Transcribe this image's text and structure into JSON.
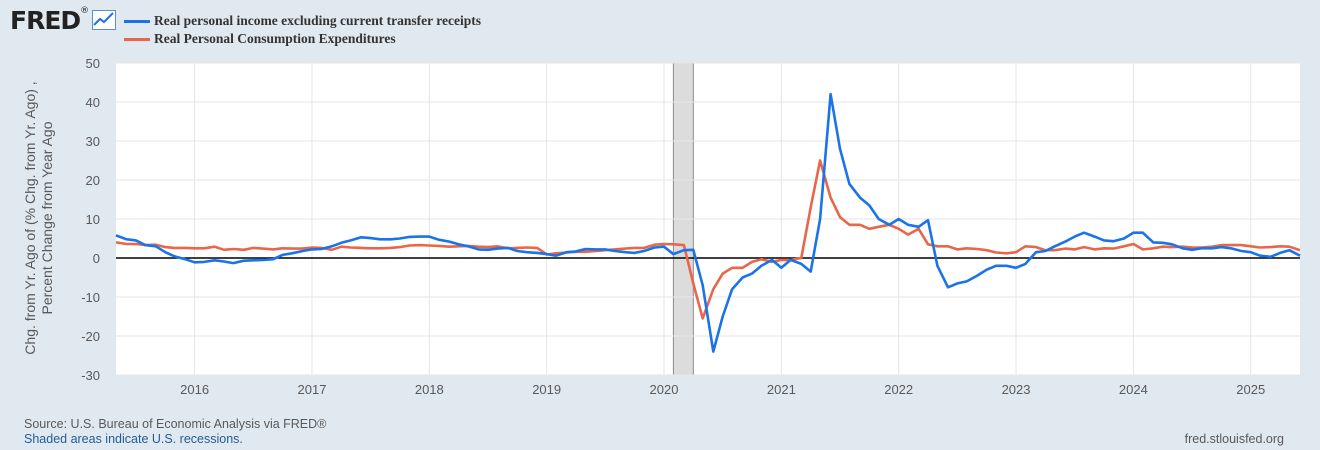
{
  "brand": {
    "logo_text": "FRED",
    "logo_suffix": "®"
  },
  "footer": {
    "source": "Source: U.S. Bureau of Economic Analysis via FRED®",
    "shading_note": "Shaded areas indicate U.S. recessions.",
    "url": "fred.stlouisfed.org"
  },
  "colors": {
    "series_income": "#1a73e8",
    "series_pce": "#e8674a",
    "background": "#e1e9f0",
    "plot_bg": "#ffffff",
    "recession": "#dcdcdc"
  },
  "chart_data": {
    "type": "line",
    "title": "",
    "xlabel": "",
    "ylabel": "Chg. from Yr. Ago of (% Chg. from Yr. Ago) ,\nPercent Change from Year Ago",
    "ylim": [
      -30,
      50
    ],
    "xlim": [
      2015.33,
      2025.42
    ],
    "yticks": [
      -30,
      -20,
      -10,
      0,
      10,
      20,
      30,
      40,
      50
    ],
    "xticks": [
      2016,
      2017,
      2018,
      2019,
      2020,
      2021,
      2022,
      2023,
      2024,
      2025
    ],
    "grid": true,
    "legend_position": "top-left",
    "recessions": [
      [
        2020.08,
        2020.25
      ]
    ],
    "series": [
      {
        "name": "Real personal income excluding current transfer receipts",
        "color": "#1a73e8",
        "x": [
          2015.33,
          2015.42,
          2015.5,
          2015.58,
          2015.67,
          2015.75,
          2015.83,
          2015.92,
          2016.0,
          2016.08,
          2016.17,
          2016.25,
          2016.33,
          2016.42,
          2016.5,
          2016.58,
          2016.67,
          2016.75,
          2016.83,
          2016.92,
          2017.0,
          2017.08,
          2017.17,
          2017.25,
          2017.33,
          2017.42,
          2017.5,
          2017.58,
          2017.67,
          2017.75,
          2017.83,
          2017.92,
          2018.0,
          2018.08,
          2018.17,
          2018.25,
          2018.33,
          2018.42,
          2018.5,
          2018.58,
          2018.67,
          2018.75,
          2018.83,
          2018.92,
          2019.0,
          2019.08,
          2019.17,
          2019.25,
          2019.33,
          2019.42,
          2019.5,
          2019.58,
          2019.67,
          2019.75,
          2019.83,
          2019.92,
          2020.0,
          2020.08,
          2020.17,
          2020.25,
          2020.33,
          2020.42,
          2020.5,
          2020.58,
          2020.67,
          2020.75,
          2020.83,
          2020.92,
          2021.0,
          2021.08,
          2021.17,
          2021.25,
          2021.33,
          2021.42,
          2021.5,
          2021.58,
          2021.67,
          2021.75,
          2021.83,
          2021.92,
          2022.0,
          2022.08,
          2022.17,
          2022.25,
          2022.33,
          2022.42,
          2022.5,
          2022.58,
          2022.67,
          2022.75,
          2022.83,
          2022.92,
          2023.0,
          2023.08,
          2023.17,
          2023.25,
          2023.33,
          2023.42,
          2023.5,
          2023.58,
          2023.67,
          2023.75,
          2023.83,
          2023.92,
          2024.0,
          2024.08,
          2024.17,
          2024.25,
          2024.33,
          2024.42,
          2024.5,
          2024.58,
          2024.67,
          2024.75,
          2024.83,
          2024.92,
          2025.0,
          2025.08,
          2025.17,
          2025.25,
          2025.33,
          2025.42
        ],
        "y": [
          5.8,
          4.8,
          4.5,
          3.3,
          3.0,
          1.5,
          0.4,
          -0.3,
          -1.1,
          -1.0,
          -0.6,
          -0.9,
          -1.3,
          -0.7,
          -0.6,
          -0.5,
          -0.3,
          0.8,
          1.2,
          1.8,
          2.2,
          2.3,
          3.0,
          3.9,
          4.5,
          5.3,
          5.1,
          4.8,
          4.8,
          5.0,
          5.4,
          5.5,
          5.5,
          4.7,
          4.2,
          3.5,
          3.0,
          2.2,
          2.1,
          2.4,
          2.6,
          1.8,
          1.5,
          1.3,
          1.0,
          0.6,
          1.5,
          1.7,
          2.3,
          2.2,
          2.2,
          1.8,
          1.5,
          1.3,
          1.8,
          2.7,
          2.9,
          1.0,
          2.0,
          2.1,
          -7.0,
          -24.0,
          -15.0,
          -8.0,
          -5.0,
          -4.0,
          -2.0,
          -0.5,
          -2.5,
          -0.5,
          -1.5,
          -3.5,
          10.0,
          42.0,
          28.0,
          19.0,
          15.5,
          13.5,
          10.0,
          8.5,
          10.0,
          8.5,
          8.0,
          9.7,
          -2.0,
          -7.5,
          -6.5,
          -6.0,
          -4.5,
          -3.0,
          -2.0,
          -2.0,
          -2.5,
          -1.5,
          1.5,
          1.8,
          3.0,
          4.2,
          5.5,
          6.5,
          5.5,
          4.5,
          4.3,
          5.0,
          6.5,
          6.5,
          4.0,
          3.9,
          3.5,
          2.5,
          2.1,
          2.5,
          2.5,
          2.8,
          2.5,
          1.8,
          1.5,
          0.6,
          0.3,
          1.3,
          2.0,
          0.6
        ]
      },
      {
        "name": "Real Personal Consumption Expenditures",
        "color": "#e8674a",
        "x": [
          2015.33,
          2015.42,
          2015.5,
          2015.58,
          2015.67,
          2015.75,
          2015.83,
          2015.92,
          2016.0,
          2016.08,
          2016.17,
          2016.25,
          2016.33,
          2016.42,
          2016.5,
          2016.58,
          2016.67,
          2016.75,
          2016.83,
          2016.92,
          2017.0,
          2017.08,
          2017.17,
          2017.25,
          2017.33,
          2017.42,
          2017.5,
          2017.58,
          2017.67,
          2017.75,
          2017.83,
          2017.92,
          2018.0,
          2018.08,
          2018.17,
          2018.25,
          2018.33,
          2018.42,
          2018.5,
          2018.58,
          2018.67,
          2018.75,
          2018.83,
          2018.92,
          2019.0,
          2019.08,
          2019.17,
          2019.25,
          2019.33,
          2019.42,
          2019.5,
          2019.58,
          2019.67,
          2019.75,
          2019.83,
          2019.92,
          2020.0,
          2020.08,
          2020.17,
          2020.25,
          2020.33,
          2020.42,
          2020.5,
          2020.58,
          2020.67,
          2020.75,
          2020.83,
          2020.92,
          2021.0,
          2021.08,
          2021.17,
          2021.25,
          2021.33,
          2021.42,
          2021.5,
          2021.58,
          2021.67,
          2021.75,
          2021.83,
          2021.92,
          2022.0,
          2022.08,
          2022.17,
          2022.25,
          2022.33,
          2022.42,
          2022.5,
          2022.58,
          2022.67,
          2022.75,
          2022.83,
          2022.92,
          2023.0,
          2023.08,
          2023.17,
          2023.25,
          2023.33,
          2023.42,
          2023.5,
          2023.58,
          2023.67,
          2023.75,
          2023.83,
          2023.92,
          2024.0,
          2024.08,
          2024.17,
          2024.25,
          2024.33,
          2024.42,
          2024.5,
          2024.58,
          2024.67,
          2024.75,
          2024.83,
          2024.92,
          2025.0,
          2025.08,
          2025.17,
          2025.25,
          2025.33,
          2025.42
        ],
        "y": [
          4.0,
          3.6,
          3.6,
          3.3,
          3.4,
          2.8,
          2.6,
          2.6,
          2.5,
          2.5,
          2.9,
          2.1,
          2.3,
          2.1,
          2.6,
          2.4,
          2.2,
          2.5,
          2.4,
          2.4,
          2.7,
          2.6,
          2.1,
          2.9,
          2.7,
          2.6,
          2.5,
          2.5,
          2.6,
          2.8,
          3.2,
          3.3,
          3.2,
          3.1,
          2.9,
          3.0,
          3.1,
          2.9,
          2.8,
          3.0,
          2.5,
          2.6,
          2.7,
          2.6,
          0.9,
          1.2,
          1.4,
          1.6,
          1.6,
          1.8,
          2.0,
          2.2,
          2.4,
          2.6,
          2.6,
          3.4,
          3.6,
          3.5,
          3.3,
          -6.5,
          -15.5,
          -8.0,
          -4.0,
          -2.5,
          -2.5,
          -1.0,
          -0.3,
          -1.0,
          -0.5,
          -0.5,
          0.0,
          13.0,
          25.0,
          15.5,
          10.5,
          8.5,
          8.5,
          7.5,
          8.0,
          8.5,
          7.5,
          6.0,
          7.5,
          3.5,
          3.0,
          3.0,
          2.2,
          2.5,
          2.3,
          2.0,
          1.4,
          1.2,
          1.5,
          3.0,
          2.8,
          2.0,
          2.0,
          2.4,
          2.2,
          2.8,
          2.2,
          2.5,
          2.4,
          3.0,
          3.6,
          2.2,
          2.5,
          2.9,
          2.8,
          2.9,
          2.7,
          2.7,
          2.9,
          3.3,
          3.3,
          3.3,
          3.0,
          2.7,
          2.8,
          3.0,
          2.9,
          2.0
        ]
      }
    ]
  }
}
